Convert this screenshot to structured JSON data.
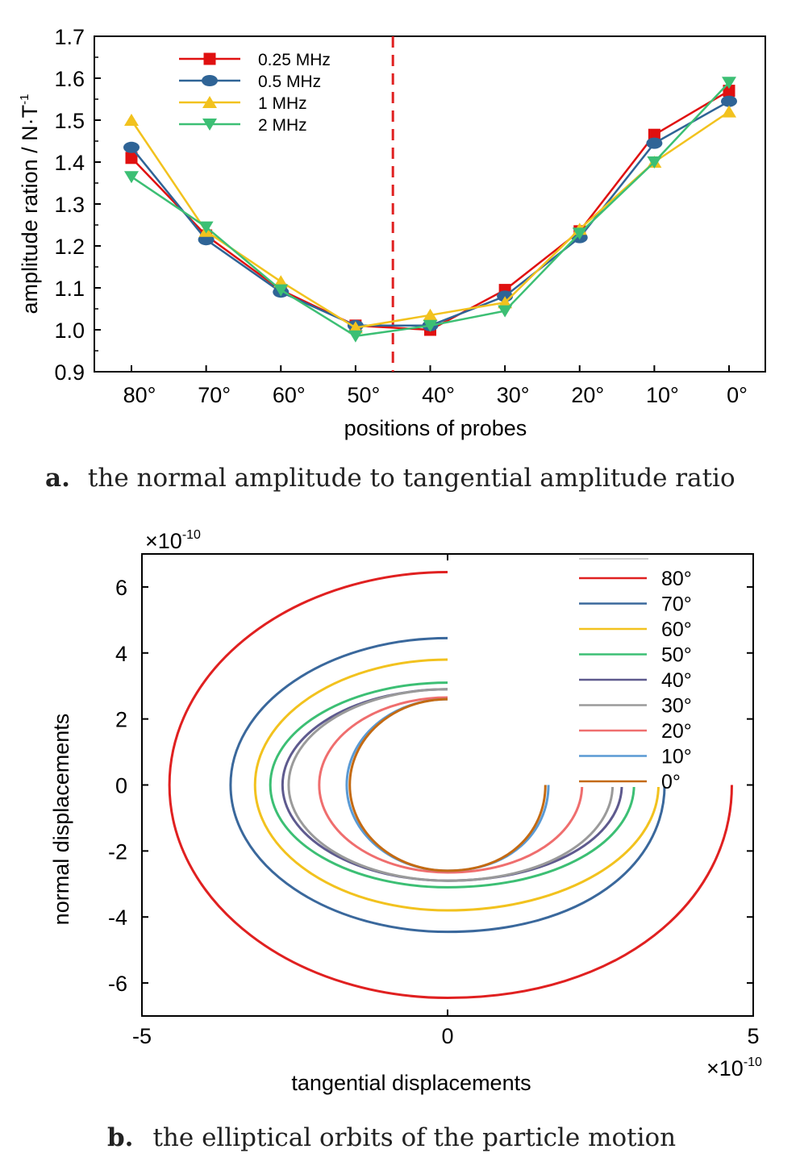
{
  "chart_data": [
    {
      "type": "line",
      "ylabel": "amplitude ration / N·T",
      "ylabel_sup": "-1",
      "xlabel": "positions of probes",
      "categories": [
        "80°",
        "70°",
        "60°",
        "50°",
        "40°",
        "30°",
        "20°",
        "10°",
        "0°"
      ],
      "ylim": [
        0.9,
        1.7
      ],
      "yticks": [
        "0.9",
        "1.0",
        "1.1",
        "1.2",
        "1.3",
        "1.4",
        "1.5",
        "1.6",
        "1.7"
      ],
      "reference_line": {
        "between": [
          "50°",
          "40°"
        ],
        "style": "dashed",
        "color": "#e02020"
      },
      "legend_position": "top-left",
      "series": [
        {
          "name": "0.25 MHz",
          "marker": "square",
          "color": "#e01010",
          "values": [
            1.41,
            1.225,
            1.095,
            1.01,
            1.0,
            1.095,
            1.235,
            1.465,
            1.57
          ]
        },
        {
          "name": "0.5 MHz",
          "marker": "ellipse",
          "color": "#2f6496",
          "values": [
            1.435,
            1.215,
            1.09,
            1.01,
            1.01,
            1.08,
            1.22,
            1.445,
            1.545
          ]
        },
        {
          "name": "1 MHz",
          "marker": "triangle-up",
          "color": "#f2c21e",
          "values": [
            1.5,
            1.235,
            1.115,
            1.005,
            1.035,
            1.065,
            1.24,
            1.4,
            1.52
          ]
        },
        {
          "name": "2 MHz",
          "marker": "triangle-down",
          "color": "#3cbf74",
          "values": [
            1.365,
            1.245,
            1.095,
            0.985,
            1.01,
            1.045,
            1.23,
            1.4,
            1.59
          ]
        }
      ],
      "caption": {
        "tag": "a.",
        "text": "the normal amplitude to tangential amplitude ratio"
      }
    },
    {
      "type": "line",
      "xlabel": "tangential displacements",
      "ylabel": "normal displacements",
      "xlim": [
        -5,
        5
      ],
      "ylim": [
        -7,
        7
      ],
      "xticks": [
        "-5",
        "0",
        "5"
      ],
      "yticks": [
        "-6",
        "-4",
        "-2",
        "0",
        "2",
        "4",
        "6"
      ],
      "x_multiplier": {
        "base": "×10",
        "exp": "-10"
      },
      "y_multiplier": {
        "base": "×10",
        "exp": "-10"
      },
      "legend_position": "top-right",
      "series": [
        {
          "name": "80°",
          "color": "#e02020",
          "a": 4.55,
          "b": 6.45,
          "end_x": 4.65
        },
        {
          "name": "70°",
          "color": "#3a689c",
          "a": 3.55,
          "b": 4.45,
          "end_x": 3.55
        },
        {
          "name": "60°",
          "color": "#f2c21e",
          "a": 3.15,
          "b": 3.8,
          "end_x": 3.45
        },
        {
          "name": "50°",
          "color": "#3cbf74",
          "a": 2.9,
          "b": 3.1,
          "end_x": 3.05
        },
        {
          "name": "40°",
          "color": "#5e5a8e",
          "a": 2.7,
          "b": 2.9,
          "end_x": 2.85
        },
        {
          "name": "30°",
          "color": "#9a9a9a",
          "a": 2.6,
          "b": 2.9,
          "end_x": 2.7
        },
        {
          "name": "20°",
          "color": "#ef6e6e",
          "a": 2.1,
          "b": 2.65,
          "end_x": 2.2
        },
        {
          "name": "10°",
          "color": "#5a9ad4",
          "a": 1.65,
          "b": 2.6,
          "end_x": 1.65
        },
        {
          "name": "0°",
          "color": "#c46a12",
          "a": 1.6,
          "b": 2.6,
          "end_x": 1.6
        }
      ],
      "caption": {
        "tag": "b.",
        "text": "the elliptical orbits of the particle motion"
      }
    }
  ]
}
